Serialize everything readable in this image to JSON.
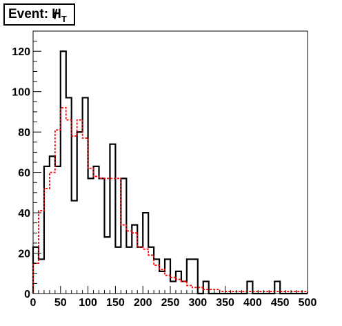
{
  "chart_data": {
    "type": "histogram",
    "title_prefix": "Event: ",
    "title_symbol": "H",
    "title_subscript": "T",
    "xlim": [
      0,
      500
    ],
    "ylim": [
      0,
      130
    ],
    "bin_width": 10,
    "x_ticks": [
      0,
      50,
      100,
      150,
      200,
      250,
      300,
      350,
      400,
      450,
      500
    ],
    "x_tick_labels": [
      "0",
      "50",
      "100",
      "150",
      "200",
      "250",
      "300",
      "350",
      "400",
      "450",
      "500"
    ],
    "y_ticks": [
      0,
      20,
      40,
      60,
      80,
      100,
      120
    ],
    "y_tick_labels": [
      "0",
      "20",
      "40",
      "60",
      "80",
      "100",
      "120"
    ],
    "series": [
      {
        "style": "solid",
        "color": "#000000",
        "bin_edges": [
          0,
          10,
          20,
          30,
          40,
          50,
          60,
          70,
          80,
          90,
          100,
          110,
          120,
          130,
          140,
          150,
          160,
          170,
          180,
          190,
          200,
          210,
          220,
          230,
          240,
          250,
          260,
          270,
          280,
          290,
          300,
          310,
          320,
          330,
          340,
          350,
          360,
          370,
          380,
          390,
          400,
          410,
          420,
          430,
          440,
          450,
          460,
          470,
          480,
          490,
          500
        ],
        "values": [
          23,
          17,
          63,
          68,
          63,
          120,
          97,
          46,
          80,
          97,
          57,
          63,
          57,
          28,
          74,
          23,
          57,
          23,
          34,
          23,
          40,
          23,
          17,
          11,
          17,
          6,
          11,
          6,
          17,
          17,
          0,
          6,
          0,
          0,
          0,
          0,
          0,
          0,
          0,
          6,
          0,
          0,
          0,
          0,
          6,
          0,
          0,
          0,
          0,
          0
        ]
      },
      {
        "style": "dashed",
        "color": "#ff0000",
        "bin_edges": [
          0,
          10,
          20,
          30,
          40,
          50,
          60,
          70,
          80,
          90,
          100,
          110,
          120,
          130,
          140,
          150,
          160,
          170,
          180,
          190,
          200,
          210,
          220,
          230,
          240,
          250,
          260,
          270,
          280,
          290,
          300,
          310,
          320,
          330,
          340,
          350,
          360,
          370,
          380,
          390,
          400,
          410,
          420,
          430,
          440,
          450,
          460,
          470,
          480,
          490,
          500
        ],
        "values": [
          15,
          41,
          52,
          60,
          81,
          92,
          86,
          78,
          86,
          77,
          62,
          58,
          57,
          57,
          57,
          57,
          34,
          31,
          30,
          23,
          22,
          19,
          14,
          12,
          9,
          8,
          7,
          6,
          4,
          3,
          3,
          2,
          2,
          2,
          1,
          1,
          1,
          1,
          1,
          1,
          1,
          1,
          1,
          1,
          1,
          1,
          1,
          1,
          1,
          1
        ]
      }
    ]
  }
}
